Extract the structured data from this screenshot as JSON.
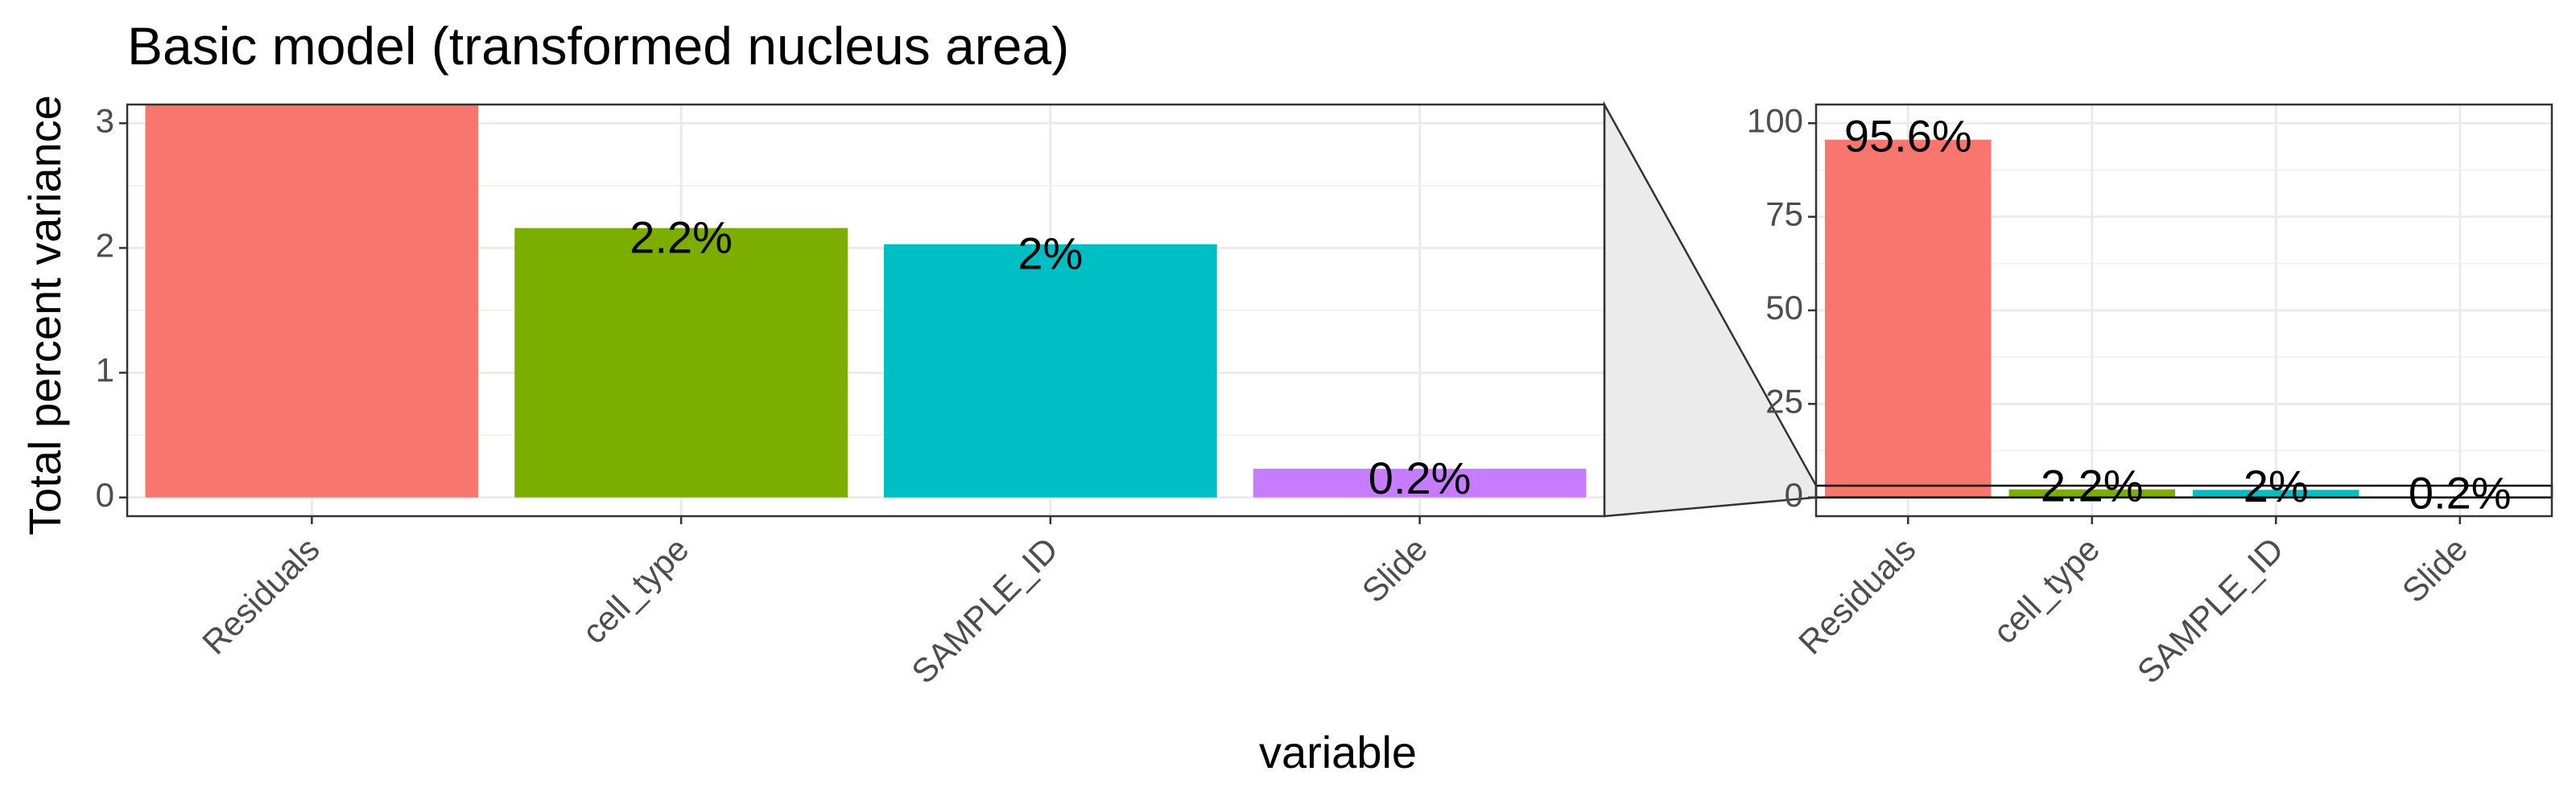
{
  "chart_data": {
    "type": "bar",
    "title": "Basic model (transformed nucleus area)",
    "xlabel": "variable",
    "ylabel": "Total percent variance",
    "categories": [
      "Residuals",
      "cell_type",
      "SAMPLE_ID",
      "Slide"
    ],
    "values": [
      95.6,
      2.16,
      2.03,
      0.23
    ],
    "labels": [
      "95.6%",
      "2.2%",
      "2%",
      "0.2%"
    ],
    "colors": [
      "#F8766D",
      "#7CAE00",
      "#00BFC4",
      "#C77CFF"
    ],
    "grid": true,
    "legend": "none",
    "panels": [
      {
        "name": "zoomed",
        "ylim": [
          -0.15,
          3.15
        ],
        "yticks": [
          0,
          1,
          2,
          3
        ]
      },
      {
        "name": "full",
        "ylim": [
          -5,
          105
        ],
        "yticks": [
          0,
          25,
          50,
          75,
          100
        ],
        "zoom_window": [
          0,
          3.15
        ]
      }
    ]
  }
}
